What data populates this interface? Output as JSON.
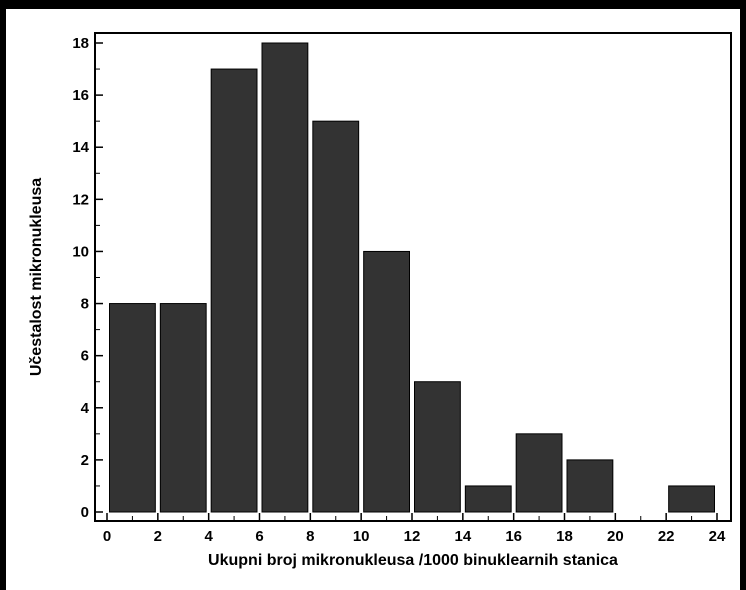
{
  "chart_data": {
    "type": "bar",
    "xlabel": "Ukupni broj mikronukleusa /1000 binuklearnih stanica",
    "ylabel": "Učestalost mikronukleusa",
    "xlim": [
      0,
      24
    ],
    "ylim": [
      0,
      18
    ],
    "bin_width": 2,
    "x_ticks": [
      0,
      2,
      4,
      6,
      8,
      10,
      12,
      14,
      16,
      18,
      20,
      22,
      24
    ],
    "y_ticks": [
      0,
      2,
      4,
      6,
      8,
      10,
      12,
      14,
      16,
      18
    ],
    "bins": [
      {
        "start": 0,
        "end": 2,
        "value": 8
      },
      {
        "start": 2,
        "end": 4,
        "value": 8
      },
      {
        "start": 4,
        "end": 6,
        "value": 17
      },
      {
        "start": 6,
        "end": 8,
        "value": 18
      },
      {
        "start": 8,
        "end": 10,
        "value": 15
      },
      {
        "start": 10,
        "end": 12,
        "value": 10
      },
      {
        "start": 12,
        "end": 14,
        "value": 5
      },
      {
        "start": 14,
        "end": 16,
        "value": 1
      },
      {
        "start": 16,
        "end": 18,
        "value": 3
      },
      {
        "start": 18,
        "end": 20,
        "value": 2
      },
      {
        "start": 20,
        "end": 22,
        "value": 0
      },
      {
        "start": 22,
        "end": 24,
        "value": 1
      }
    ],
    "bar_color": "#333333",
    "grid": false,
    "legend": "none"
  }
}
